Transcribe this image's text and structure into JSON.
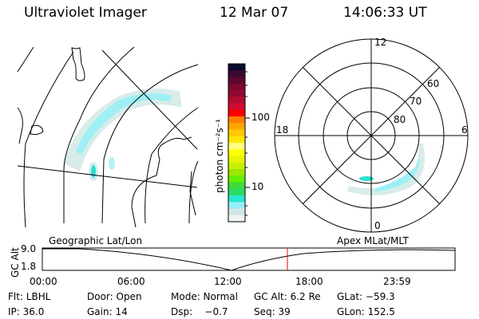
{
  "header": {
    "title": "Ultraviolet Imager",
    "date": "12 Mar 07",
    "time": "14:06:33 UT"
  },
  "colorbar": {
    "unit_label": "photon cm⁻²s⁻¹",
    "ticks": [
      "100",
      "10"
    ],
    "colors": [
      "#0a0a30",
      "#3a0a30",
      "#5a0a30",
      "#7a0a30",
      "#900a30",
      "#b00a30",
      "#d00a30",
      "#ff0000",
      "#ff7f00",
      "#ffa500",
      "#ffc800",
      "#ffe600",
      "#ffff80",
      "#ffff00",
      "#e6f500",
      "#c8f000",
      "#9ae600",
      "#64f000",
      "#3cdc3c",
      "#28dc64",
      "#28e6d2",
      "#96f0f5",
      "#d2e6e6",
      "#eef6f0"
    ]
  },
  "polar": {
    "ring_labels": [
      "80",
      "70",
      "60"
    ],
    "mlt_labels": {
      "top": "12",
      "bottom": "0",
      "left": "18",
      "right": "6"
    }
  },
  "orbit": {
    "left_label": "Geographic Lat/Lon",
    "right_label": "Apex MLat/MLT",
    "y_axis_label": "GC Alt",
    "y_ticks": [
      "9.0",
      "1.8"
    ],
    "x_ticks": [
      "00:00",
      "06:00",
      "12:00",
      "18:00",
      "23:59"
    ],
    "marker_color": "#ff0000"
  },
  "status": {
    "flt": "Flt: LBHL",
    "ip": "IP: 36.0",
    "door": "Door: Open",
    "gain": "Gain: 14",
    "mode": "Mode: Normal",
    "dsp": "Dsp:    −0.7",
    "gcalt": "GC Alt: 6.2 Re",
    "seq": "Seq: 39",
    "glat": "GLat: −59.3",
    "glon": "GLon: 152.5"
  },
  "colors": {
    "aurora_light": "#d8ecea",
    "aurora_mid": "#9ef0f5",
    "aurora_bright": "#28e0d0"
  }
}
